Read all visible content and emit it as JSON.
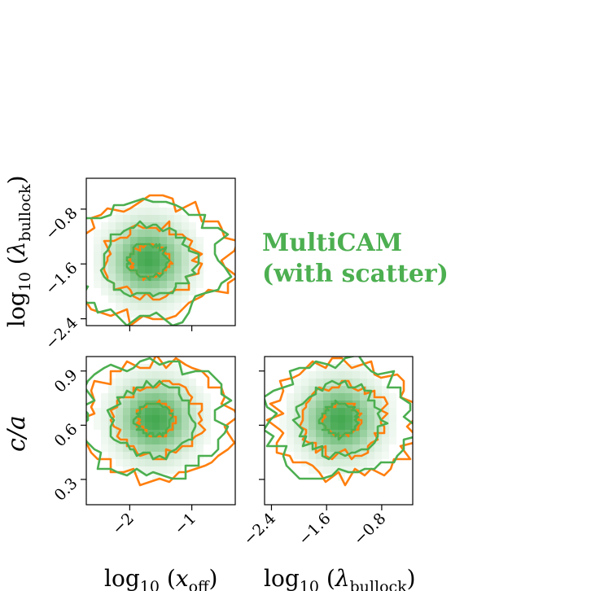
{
  "legend": {
    "line1": "MultiCAM",
    "line2": "(with scatter)",
    "color": "#4caf50"
  },
  "colors": {
    "green": "#4caf50",
    "orange": "#ff7f0e",
    "hist_max": "#3aa447"
  },
  "axis_labels": {
    "x_off": "log10 (xoff)",
    "lambda_bullock": "log10 (λbullock)",
    "c_over_a": "c/a"
  },
  "chart_data": [
    {
      "type": "heatmap",
      "panel": "lambda_vs_xoff",
      "xlabel": "log10 (xoff)",
      "ylabel": "log10 (λbullock)",
      "xlim": [
        -2.7,
        -0.3
      ],
      "ylim": [
        -2.5,
        -0.35
      ],
      "xticks": [
        -2,
        -1
      ],
      "xtick_labels": [
        "",
        ""
      ],
      "yticks": [
        -0.8,
        -1.6,
        -2.4
      ],
      "ytick_labels": [
        "−0.8",
        "−1.6",
        "−2.4"
      ],
      "peak": {
        "x": -1.7,
        "y": -1.55
      },
      "contour_levels": 3,
      "series": [
        {
          "color": "orange"
        },
        {
          "color": "green"
        }
      ]
    },
    {
      "type": "heatmap",
      "panel": "ca_vs_xoff",
      "xlabel": "log10 (xoff)",
      "ylabel": "c/a",
      "xlim": [
        -2.7,
        -0.3
      ],
      "ylim": [
        0.16,
        0.98
      ],
      "xticks": [
        -2,
        -1
      ],
      "xtick_labels": [
        "−2",
        "−1"
      ],
      "yticks": [
        0.9,
        0.6,
        0.3
      ],
      "ytick_labels": [
        "0.9",
        "0.6",
        "0.3"
      ],
      "peak": {
        "x": -1.6,
        "y": 0.63
      },
      "contour_levels": 3,
      "series": [
        {
          "color": "orange"
        },
        {
          "color": "green"
        }
      ]
    },
    {
      "type": "heatmap",
      "panel": "ca_vs_lambda",
      "xlabel": "log10 (λbullock)",
      "ylabel": "",
      "xlim": [
        -2.5,
        -0.35
      ],
      "ylim": [
        0.16,
        0.98
      ],
      "xticks": [
        -2.4,
        -1.6,
        -0.8
      ],
      "xtick_labels": [
        "−2.4",
        "−1.6",
        "−0.8"
      ],
      "yticks": [
        0.9,
        0.6,
        0.3
      ],
      "ytick_labels": [
        "",
        "",
        ""
      ],
      "peak": {
        "x": -1.4,
        "y": 0.63
      },
      "contour_levels": 3,
      "series": [
        {
          "color": "orange"
        },
        {
          "color": "green"
        }
      ]
    }
  ]
}
